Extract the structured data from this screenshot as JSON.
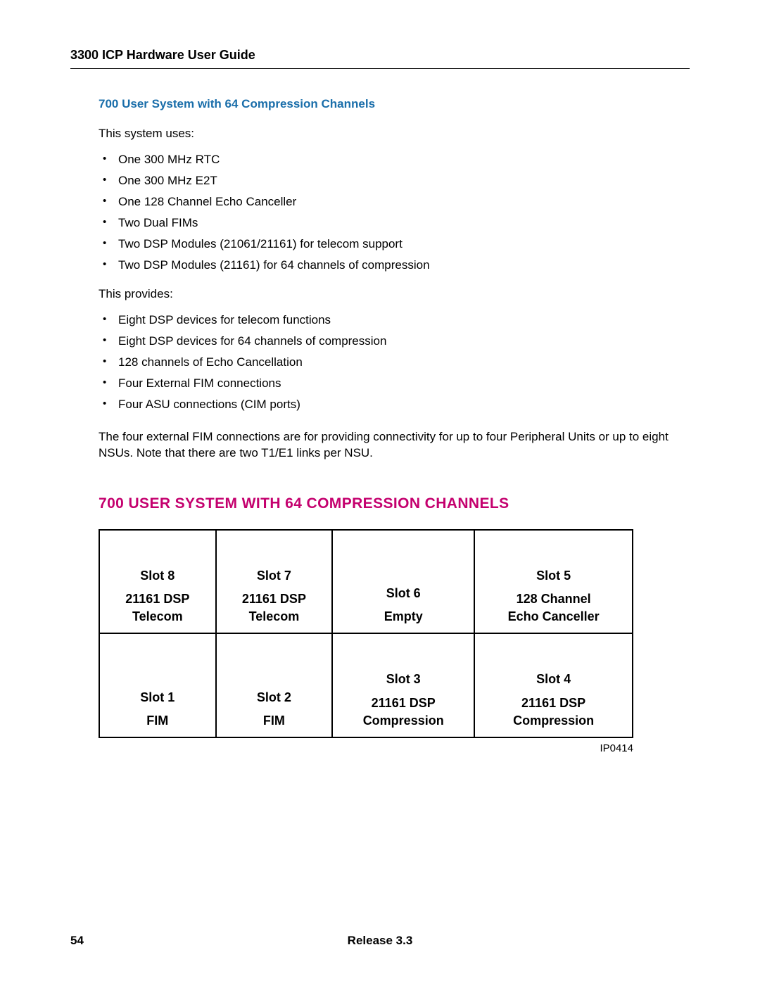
{
  "header": {
    "title": "3300 ICP Hardware User Guide"
  },
  "section": {
    "heading": "700 User System with 64 Compression Channels",
    "uses_intro": "This system uses:",
    "uses_items": [
      "One 300 MHz RTC",
      "One 300 MHz E2T",
      "One 128 Channel Echo Canceller",
      "Two Dual FIMs",
      "Two DSP Modules (21061/21161) for telecom support",
      "Two DSP Modules (21161) for 64 channels of compression"
    ],
    "provides_intro": "This provides:",
    "provides_items": [
      "Eight DSP devices for telecom functions",
      "Eight DSP devices for 64 channels of compression",
      "128 channels of Echo Cancellation",
      "Four External FIM connections",
      "Four ASU connections (CIM ports)"
    ],
    "paragraph": "The four external FIM connections are for providing connectivity for up to four Peripheral Units or up to eight NSUs. Note that there are two T1/E1 links per NSU."
  },
  "diagram": {
    "title": "700 USER SYSTEM WITH 64 COMPRESSION CHANNELS",
    "top_row": [
      {
        "slot": "Slot 8",
        "content_line1": "21161 DSP",
        "content_line2": "Telecom"
      },
      {
        "slot": "Slot 7",
        "content_line1": "21161 DSP",
        "content_line2": "Telecom"
      },
      {
        "slot": "Slot 6",
        "content_line1": "Empty",
        "content_line2": ""
      },
      {
        "slot": "Slot 5",
        "content_line1": "128 Channel",
        "content_line2": "Echo Canceller"
      }
    ],
    "bottom_row": [
      {
        "slot": "Slot 1",
        "content_line1": "FIM",
        "content_line2": ""
      },
      {
        "slot": "Slot 2",
        "content_line1": "FIM",
        "content_line2": ""
      },
      {
        "slot": "Slot 3",
        "content_line1": "21161 DSP",
        "content_line2": "Compression"
      },
      {
        "slot": "Slot 4",
        "content_line1": "21161 DSP",
        "content_line2": "Compression"
      }
    ],
    "id": "IP0414"
  },
  "footer": {
    "page": "54",
    "release": "Release 3.3"
  },
  "colors": {
    "heading_blue": "#1a6eaa",
    "title_magenta": "#c4006e",
    "text": "#000000",
    "background": "#ffffff"
  }
}
